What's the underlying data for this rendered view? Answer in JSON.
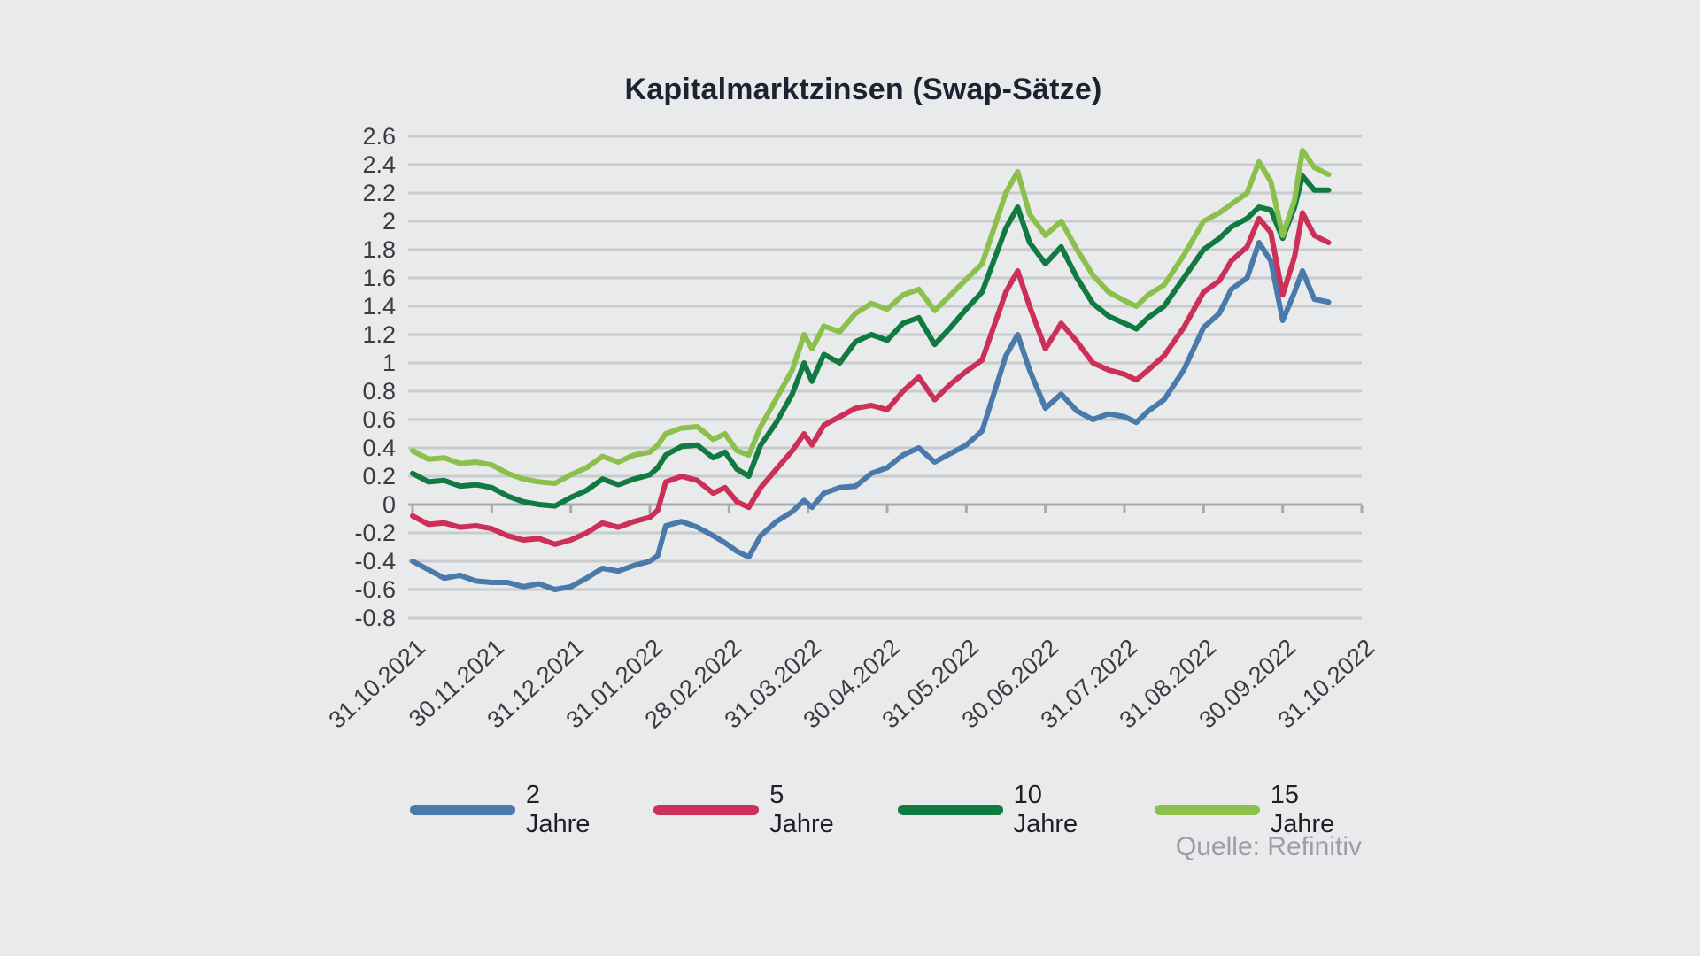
{
  "title": "Kapitalmarktzinsen (Swap-Sätze)",
  "source": "Quelle: Refinitiv",
  "colors": {
    "background": "#e9eaec",
    "gridline": "#c9cbcd",
    "zero_line": "#a7aaad",
    "title_text": "#1e2130",
    "axis_text": "#3c3c40",
    "source_text": "#9b9fa4",
    "series_2y": "#4a7aa9",
    "series_5y": "#cc3058",
    "series_10y": "#107a41",
    "series_15y": "#8cc04d"
  },
  "legend": {
    "items": [
      {
        "label": "2 Jahre",
        "color": "#4a7aa9"
      },
      {
        "label": "5 Jahre",
        "color": "#cc3058"
      },
      {
        "label": "10 Jahre",
        "color": "#107a41"
      },
      {
        "label": "15 Jahre",
        "color": "#8cc04d"
      }
    ]
  },
  "chart_data": {
    "type": "line",
    "title": "Kapitalmarktzinsen (Swap-Sätze)",
    "xlabel": "",
    "ylabel": "",
    "ylim": [
      -0.8,
      2.6
    ],
    "y_tick_step": 0.2,
    "y_tick_labels": [
      "2.6",
      "2.4",
      "2.2",
      "2",
      "1.8",
      "1.6",
      "1.4",
      "1.2",
      "1",
      "0.8",
      "0.6",
      "0.4",
      "0.2",
      "0",
      "-0.2",
      "-0.4",
      "-0.6",
      "-0.8"
    ],
    "x_tick_labels": [
      "31.10.2021",
      "30.11.2021",
      "31.12.2021",
      "31.01.2022",
      "28.02.2022",
      "31.03.2022",
      "30.04.2022",
      "31.05.2022",
      "30.06.2022",
      "31.07.2022",
      "31.08.2022",
      "30.09.2022",
      "31.10.2022"
    ],
    "x_unit": "months since 31.10.2021",
    "xlim": [
      0,
      12
    ],
    "grid": true,
    "legend_position": "bottom",
    "x": [
      0,
      0.2,
      0.4,
      0.6,
      0.8,
      1.0,
      1.2,
      1.4,
      1.6,
      1.8,
      2.0,
      2.2,
      2.4,
      2.6,
      2.8,
      3.0,
      3.1,
      3.2,
      3.4,
      3.6,
      3.8,
      3.95,
      4.1,
      4.25,
      4.4,
      4.6,
      4.8,
      4.95,
      5.05,
      5.2,
      5.4,
      5.6,
      5.8,
      6.0,
      6.2,
      6.4,
      6.6,
      6.8,
      7.0,
      7.2,
      7.5,
      7.65,
      7.8,
      8.0,
      8.2,
      8.4,
      8.6,
      8.8,
      9.0,
      9.15,
      9.3,
      9.5,
      9.75,
      10.0,
      10.2,
      10.35,
      10.55,
      10.7,
      10.85,
      11.0,
      11.15,
      11.25,
      11.4,
      11.58
    ],
    "series": [
      {
        "name": "2 Jahre",
        "color": "#4a7aa9",
        "values": [
          -0.4,
          -0.46,
          -0.52,
          -0.5,
          -0.54,
          -0.55,
          -0.55,
          -0.58,
          -0.56,
          -0.6,
          -0.58,
          -0.52,
          -0.45,
          -0.47,
          -0.43,
          -0.4,
          -0.36,
          -0.15,
          -0.12,
          -0.16,
          -0.22,
          -0.27,
          -0.33,
          -0.37,
          -0.22,
          -0.12,
          -0.05,
          0.03,
          -0.02,
          0.08,
          0.12,
          0.13,
          0.22,
          0.26,
          0.35,
          0.4,
          0.3,
          0.36,
          0.42,
          0.52,
          1.05,
          1.2,
          0.95,
          0.68,
          0.78,
          0.66,
          0.6,
          0.64,
          0.62,
          0.58,
          0.66,
          0.74,
          0.95,
          1.25,
          1.35,
          1.52,
          1.6,
          1.85,
          1.72,
          1.3,
          1.5,
          1.65,
          1.45,
          1.43
        ]
      },
      {
        "name": "5 Jahre",
        "color": "#cc3058",
        "values": [
          -0.08,
          -0.14,
          -0.13,
          -0.16,
          -0.15,
          -0.17,
          -0.22,
          -0.25,
          -0.24,
          -0.28,
          -0.25,
          -0.2,
          -0.13,
          -0.16,
          -0.12,
          -0.09,
          -0.04,
          0.16,
          0.2,
          0.17,
          0.08,
          0.12,
          0.02,
          -0.02,
          0.12,
          0.25,
          0.38,
          0.5,
          0.42,
          0.56,
          0.62,
          0.68,
          0.7,
          0.67,
          0.8,
          0.9,
          0.74,
          0.85,
          0.94,
          1.02,
          1.5,
          1.65,
          1.4,
          1.1,
          1.28,
          1.15,
          1.0,
          0.95,
          0.92,
          0.88,
          0.95,
          1.05,
          1.25,
          1.5,
          1.58,
          1.72,
          1.82,
          2.02,
          1.92,
          1.48,
          1.75,
          2.06,
          1.9,
          1.85
        ]
      },
      {
        "name": "10 Jahre",
        "color": "#107a41",
        "values": [
          0.22,
          0.16,
          0.17,
          0.13,
          0.14,
          0.12,
          0.06,
          0.02,
          0.0,
          -0.01,
          0.05,
          0.1,
          0.18,
          0.14,
          0.18,
          0.21,
          0.26,
          0.35,
          0.41,
          0.42,
          0.33,
          0.37,
          0.25,
          0.2,
          0.42,
          0.58,
          0.78,
          1.0,
          0.87,
          1.06,
          1.0,
          1.15,
          1.2,
          1.16,
          1.28,
          1.32,
          1.13,
          1.25,
          1.38,
          1.5,
          1.95,
          2.1,
          1.85,
          1.7,
          1.82,
          1.6,
          1.42,
          1.33,
          1.28,
          1.24,
          1.32,
          1.4,
          1.6,
          1.8,
          1.88,
          1.96,
          2.02,
          2.1,
          2.08,
          1.88,
          2.1,
          2.32,
          2.22,
          2.22
        ]
      },
      {
        "name": "15 Jahre",
        "color": "#8cc04d",
        "values": [
          0.38,
          0.32,
          0.33,
          0.29,
          0.3,
          0.28,
          0.22,
          0.18,
          0.16,
          0.15,
          0.21,
          0.26,
          0.34,
          0.3,
          0.35,
          0.37,
          0.42,
          0.5,
          0.54,
          0.55,
          0.46,
          0.5,
          0.38,
          0.35,
          0.55,
          0.75,
          0.95,
          1.2,
          1.1,
          1.26,
          1.22,
          1.35,
          1.42,
          1.38,
          1.48,
          1.52,
          1.37,
          1.48,
          1.59,
          1.7,
          2.2,
          2.35,
          2.05,
          1.9,
          2.0,
          1.8,
          1.62,
          1.5,
          1.44,
          1.4,
          1.48,
          1.55,
          1.76,
          2.0,
          2.06,
          2.12,
          2.2,
          2.42,
          2.28,
          1.9,
          2.15,
          2.5,
          2.38,
          2.33
        ]
      }
    ]
  }
}
